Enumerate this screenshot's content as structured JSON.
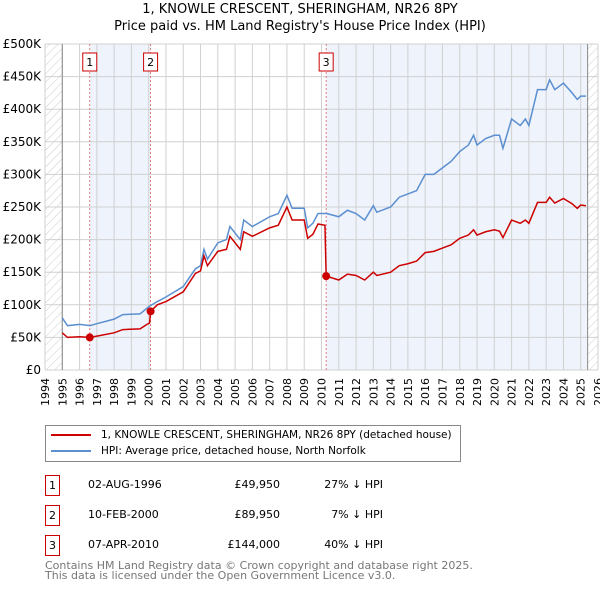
{
  "chart_data": {
    "type": "line",
    "title": "1, KNOWLE CRESCENT, SHERINGHAM, NR26 8PY",
    "subtitle": "Price paid vs. HM Land Registry's House Price Index (HPI)",
    "xlim": [
      1994,
      2026
    ],
    "ylim": [
      0,
      500000
    ],
    "x_ticks": [
      "1994",
      "1995",
      "1996",
      "1997",
      "1998",
      "1999",
      "2000",
      "2001",
      "2002",
      "2003",
      "2004",
      "2005",
      "2006",
      "2007",
      "2008",
      "2009",
      "2010",
      "2011",
      "2012",
      "2013",
      "2014",
      "2015",
      "2016",
      "2017",
      "2018",
      "2019",
      "2020",
      "2021",
      "2022",
      "2023",
      "2024",
      "2025",
      "2026"
    ],
    "y_ticks": [
      {
        "v": 0,
        "label": "£0"
      },
      {
        "v": 50000,
        "label": "£50K"
      },
      {
        "v": 100000,
        "label": "£100K"
      },
      {
        "v": 150000,
        "label": "£150K"
      },
      {
        "v": 200000,
        "label": "£200K"
      },
      {
        "v": 250000,
        "label": "£250K"
      },
      {
        "v": 300000,
        "label": "£300K"
      },
      {
        "v": 350000,
        "label": "£350K"
      },
      {
        "v": 400000,
        "label": "£400K"
      },
      {
        "v": 450000,
        "label": "£450K"
      },
      {
        "v": 500000,
        "label": "£500K"
      }
    ],
    "grid": true,
    "series": [
      {
        "name": "1, KNOWLE CRESCENT, SHERINGHAM, NR26 8PY (detached house)",
        "color": "#cc0000",
        "x": [
          1995,
          1995.3,
          1996,
          1996.59,
          1997,
          1998,
          1998.5,
          1999.5,
          1999.9,
          2000.05,
          2000.11,
          2000.5,
          2001,
          2002,
          2002.7,
          2003,
          2003.2,
          2003.4,
          2004,
          2004.5,
          2004.7,
          2005.3,
          2005.5,
          2006,
          2007,
          2007.5,
          2008,
          2008.3,
          2009,
          2009.2,
          2009.5,
          2009.8,
          2010.2,
          2010.27,
          2011,
          2011.5,
          2012,
          2012.5,
          2013,
          2013.2,
          2014,
          2014.5,
          2015,
          2015.5,
          2016,
          2016.5,
          2017,
          2017.5,
          2018,
          2018.5,
          2018.8,
          2019,
          2019.5,
          2020,
          2020.3,
          2020.5,
          2021,
          2021.5,
          2021.8,
          2022,
          2022.5,
          2023,
          2023.2,
          2023.5,
          2024,
          2024.5,
          2024.8,
          2025,
          2025.3
        ],
        "y": [
          57000,
          50000,
          51000,
          49950,
          52000,
          57000,
          62000,
          63000,
          70000,
          72000,
          89950,
          100000,
          105000,
          120000,
          148000,
          152000,
          175000,
          160000,
          182000,
          185000,
          205000,
          185000,
          212000,
          205000,
          218000,
          222000,
          250000,
          230000,
          230000,
          202000,
          208000,
          224000,
          222000,
          144000,
          138000,
          147000,
          145000,
          138000,
          150000,
          145000,
          150000,
          160000,
          163000,
          167000,
          180000,
          182000,
          187000,
          192000,
          202000,
          207000,
          215000,
          207000,
          212000,
          215000,
          213000,
          203000,
          230000,
          225000,
          230000,
          225000,
          257000,
          257000,
          265000,
          256000,
          263000,
          255000,
          248000,
          253000,
          252000
        ]
      },
      {
        "name": "HPI: Average price, detached house, North Norfolk",
        "color": "#5b8fd0",
        "x": [
          1995,
          1995.3,
          1996,
          1996.6,
          1997,
          1998,
          1998.5,
          1999.5,
          2000,
          2000.5,
          2001,
          2002,
          2002.7,
          2003,
          2003.2,
          2003.4,
          2004,
          2004.5,
          2004.7,
          2005.3,
          2005.5,
          2006,
          2007,
          2007.5,
          2008,
          2008.3,
          2009,
          2009.2,
          2009.5,
          2009.8,
          2010.3,
          2011,
          2011.5,
          2012,
          2012.5,
          2013,
          2013.2,
          2014,
          2014.5,
          2015,
          2015.5,
          2016,
          2016.5,
          2017,
          2017.5,
          2018,
          2018.5,
          2018.8,
          2019,
          2019.5,
          2020,
          2020.3,
          2020.5,
          2021,
          2021.5,
          2021.8,
          2022,
          2022.5,
          2023,
          2023.2,
          2023.5,
          2024,
          2024.5,
          2024.8,
          2025,
          2025.3
        ],
        "y": [
          80000,
          68000,
          70000,
          68000,
          71000,
          78000,
          85000,
          86000,
          97000,
          105000,
          112000,
          128000,
          155000,
          160000,
          185000,
          170000,
          195000,
          200000,
          220000,
          200000,
          230000,
          220000,
          235000,
          240000,
          268000,
          248000,
          248000,
          218000,
          225000,
          240000,
          240000,
          235000,
          245000,
          240000,
          230000,
          252000,
          242000,
          250000,
          265000,
          270000,
          275000,
          300000,
          300000,
          310000,
          320000,
          335000,
          345000,
          360000,
          345000,
          355000,
          360000,
          360000,
          340000,
          385000,
          375000,
          385000,
          375000,
          430000,
          430000,
          445000,
          430000,
          440000,
          425000,
          415000,
          420000,
          420000
        ]
      }
    ],
    "sales": [
      {
        "label": "1",
        "x": 1996.59,
        "y": 49950,
        "date": "02-AUG-1996",
        "price": "£49,950",
        "hpi": "27% ↓ HPI"
      },
      {
        "label": "2",
        "x": 2000.11,
        "y": 89950,
        "date": "10-FEB-2000",
        "price": "£89,950",
        "hpi": "7% ↓ HPI"
      },
      {
        "label": "3",
        "x": 2010.27,
        "y": 144000,
        "date": "07-APR-2010",
        "price": "£144,000",
        "hpi": "40% ↓ HPI"
      }
    ],
    "shaded_ranges": [
      [
        1996.59,
        2000.11
      ],
      [
        2010.27,
        2025.4
      ]
    ],
    "hatched_ranges": [
      [
        1994,
        1995
      ],
      [
        2025.4,
        2026
      ]
    ],
    "legend_placement": "below"
  },
  "footer": {
    "line1": "Contains HM Land Registry data © Crown copyright and database right 2025.",
    "line2": "This data is licensed under the Open Government Licence v3.0."
  }
}
